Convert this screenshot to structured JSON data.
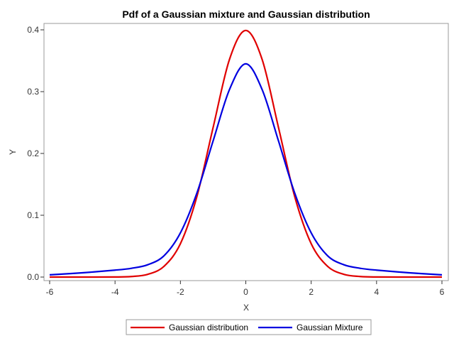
{
  "chart_data": {
    "type": "line",
    "title": "Pdf of a Gaussian mixture and Gaussian distribution",
    "xlabel": "X",
    "ylabel": "Y",
    "xlim": [
      -6,
      6
    ],
    "ylim": [
      0,
      0.4
    ],
    "xticks": [
      -6,
      -4,
      -2,
      0,
      2,
      4,
      6
    ],
    "xtick_labels": [
      "-6",
      "-4",
      "-2",
      "0",
      "2",
      "4",
      "6"
    ],
    "yticks": [
      0.0,
      0.1,
      0.2,
      0.3,
      0.4
    ],
    "ytick_labels": [
      "0.0",
      "0.1",
      "0.2",
      "0.3",
      "0.4"
    ],
    "grid": false,
    "legend_position": "bottom",
    "x": [
      -6,
      -5,
      -4,
      -3.5,
      -3,
      -2.5,
      -2,
      -1.5,
      -1,
      -0.5,
      0,
      0.5,
      1,
      1.5,
      2,
      2.5,
      3,
      3.5,
      4,
      5,
      6
    ],
    "series": [
      {
        "name": "Gaussian distribution",
        "color": "#e00000",
        "values": [
          0.0,
          0.0,
          0.0001,
          0.0009,
          0.0044,
          0.0175,
          0.054,
          0.1295,
          0.242,
          0.352,
          0.399,
          0.352,
          0.242,
          0.1295,
          0.054,
          0.0175,
          0.0044,
          0.0009,
          0.0001,
          0.0,
          0.0
        ]
      },
      {
        "name": "Gaussian Mixture",
        "color": "#0000e0",
        "values": [
          0.0036,
          0.0069,
          0.0112,
          0.0142,
          0.0199,
          0.0346,
          0.0715,
          0.1353,
          0.2203,
          0.3033,
          0.345,
          0.3033,
          0.2203,
          0.1353,
          0.0715,
          0.0346,
          0.0199,
          0.0142,
          0.0112,
          0.0069,
          0.0036
        ]
      }
    ]
  }
}
